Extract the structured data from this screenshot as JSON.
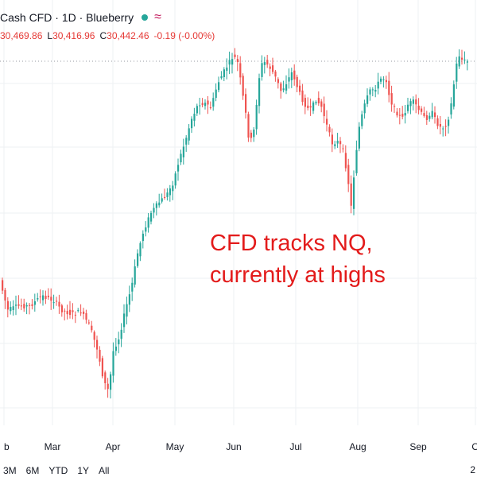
{
  "legend": {
    "symbol": "Cash CFD",
    "sep1": "·",
    "interval": "1D",
    "sep2": "·",
    "source": "Blueberry",
    "wave_glyph": "≈",
    "ohlc": [
      {
        "key": "",
        "value": "30,469.86"
      },
      {
        "key": "L",
        "value": "30,416.96"
      },
      {
        "key": "C",
        "value": "30,442.46"
      }
    ],
    "change": "-0.19 (-0.00%)"
  },
  "annotation": "CFD tracks NQ,\ncurrently at highs",
  "chart_data": {
    "type": "candlestick",
    "up_color": "#26a69a",
    "down_color": "#ef5350",
    "grid": true,
    "months": [
      "b",
      "Mar",
      "Apr",
      "May",
      "Jun",
      "Jul",
      "Aug",
      "Sep",
      "O"
    ],
    "last_price_line": true
  },
  "range_buttons": [
    "3M",
    "6M",
    "YTD",
    "1Y",
    "All"
  ],
  "right_label": "2"
}
